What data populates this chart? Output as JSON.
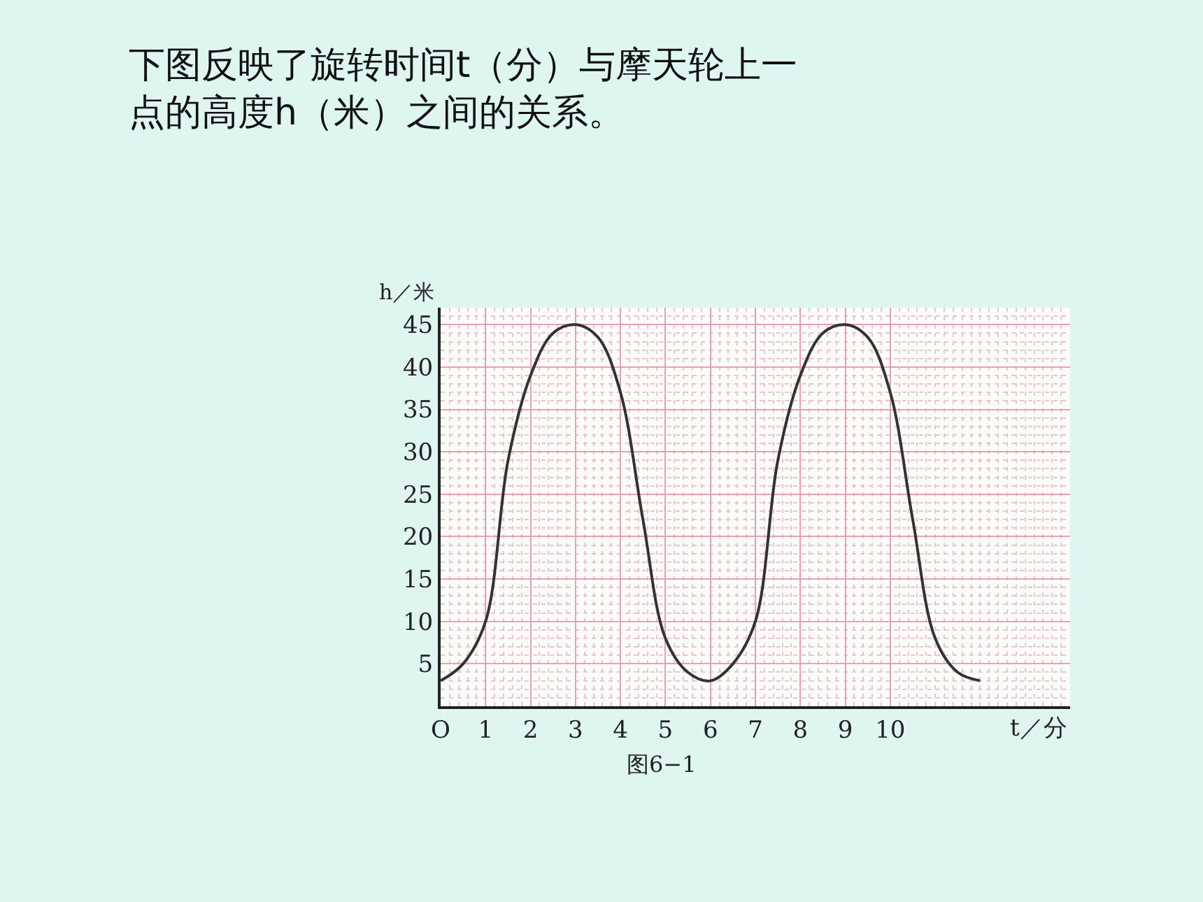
{
  "chart_data": {
    "type": "line",
    "title": "下图反映了旋转时间t（分）与摩天轮上一点的高度h（米）之间的关系。",
    "xlabel": "t／分",
    "ylabel": "h／米",
    "annotations": [
      "图6−1"
    ],
    "x": [
      0,
      0.5,
      1,
      1.5,
      2,
      2.5,
      3,
      3.5,
      4,
      4.5,
      5,
      5.5,
      6,
      6.5,
      7,
      7.5,
      8,
      8.5,
      9,
      9.5,
      10,
      10.5,
      11,
      11.5,
      12
    ],
    "series": [
      {
        "color": "#333333",
        "values": [
          3,
          5,
          10,
          29,
          39,
          44,
          45,
          43.5,
          37,
          22,
          8,
          4,
          3,
          5,
          10,
          29,
          39,
          44,
          45,
          43.5,
          37,
          22,
          8,
          4,
          3
        ]
      }
    ],
    "xlim": [
      0,
      14
    ],
    "ylim": [
      0,
      47
    ],
    "xticks": [
      {
        "value": 0,
        "label": "O"
      },
      1,
      2,
      3,
      4,
      5,
      6,
      7,
      8,
      9,
      10
    ],
    "yticks": [
      5,
      10,
      15,
      20,
      25,
      30,
      35,
      40,
      45
    ],
    "grid": true,
    "marker": "none",
    "line_style": "solid"
  }
}
